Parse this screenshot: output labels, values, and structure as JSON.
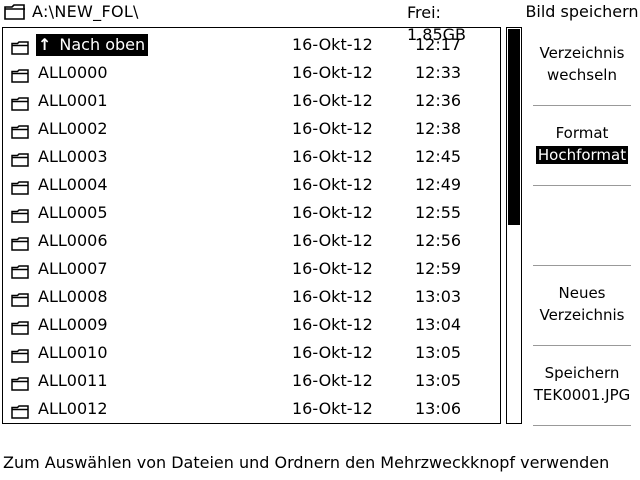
{
  "header": {
    "path": "A:\\NEW_FOL\\",
    "free_space": "Frei: 1.85GB"
  },
  "side_menu": {
    "title": "Bild speichern",
    "change_dir": {
      "line1": "Verzeichnis",
      "line2": "wechseln"
    },
    "format": {
      "label": "Format",
      "value": "Hochformat"
    },
    "new_dir": {
      "line1": "Neues",
      "line2": "Verzeichnis"
    },
    "save": {
      "line1": "Speichern",
      "line2": "TEK0001.JPG"
    }
  },
  "files": [
    {
      "name": "Nach oben",
      "date": "16-Okt-12",
      "time": "12:17",
      "up": true,
      "selected": true
    },
    {
      "name": "ALL0000",
      "date": "16-Okt-12",
      "time": "12:33"
    },
    {
      "name": "ALL0001",
      "date": "16-Okt-12",
      "time": "12:36"
    },
    {
      "name": "ALL0002",
      "date": "16-Okt-12",
      "time": "12:38"
    },
    {
      "name": "ALL0003",
      "date": "16-Okt-12",
      "time": "12:45"
    },
    {
      "name": "ALL0004",
      "date": "16-Okt-12",
      "time": "12:49"
    },
    {
      "name": "ALL0005",
      "date": "16-Okt-12",
      "time": "12:55"
    },
    {
      "name": "ALL0006",
      "date": "16-Okt-12",
      "time": "12:56"
    },
    {
      "name": "ALL0007",
      "date": "16-Okt-12",
      "time": "12:59"
    },
    {
      "name": "ALL0008",
      "date": "16-Okt-12",
      "time": "13:03"
    },
    {
      "name": "ALL0009",
      "date": "16-Okt-12",
      "time": "13:04"
    },
    {
      "name": "ALL0010",
      "date": "16-Okt-12",
      "time": "13:05"
    },
    {
      "name": "ALL0011",
      "date": "16-Okt-12",
      "time": "13:05"
    },
    {
      "name": "ALL0012",
      "date": "16-Okt-12",
      "time": "13:06"
    }
  ],
  "footer": {
    "hint": "Zum Auswählen von Dateien und Ordnern den Mehrzweckknopf verwenden"
  },
  "icons": {
    "folder": "folder-icon",
    "up": "arrow-up-icon"
  },
  "colors": {
    "foreground": "#000000",
    "background": "#ffffff",
    "highlight_bg": "#000000",
    "highlight_fg": "#ffffff"
  }
}
